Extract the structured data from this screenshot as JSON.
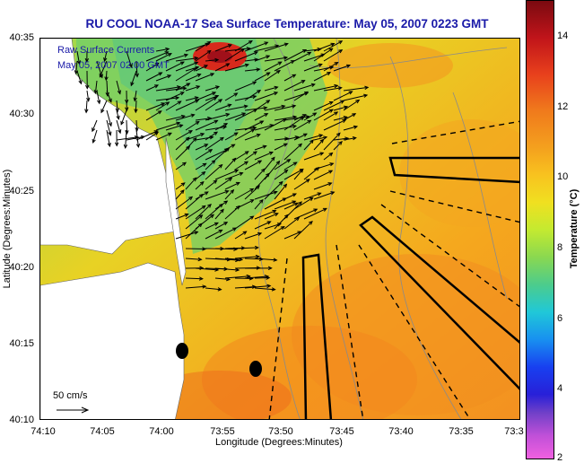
{
  "title": "RU COOL  NOAA-17  Sea Surface Temperature:  May 05, 2007 0223 GMT",
  "map_legend": {
    "line1": "Raw Surface Currents",
    "line2": "May 05, 2007 02:00 GMT"
  },
  "scale_arrow_label": "50 cm/s",
  "y_axis": {
    "label": "Latitude (Degrees:Minutes)",
    "ticks": [
      "40:35",
      "40:30",
      "40:25",
      "40:20",
      "40:15",
      "40:10"
    ]
  },
  "x_axis": {
    "label": "Longitude (Degrees:Minutes)",
    "ticks": [
      "74:10",
      "74:05",
      "74:00",
      "73:55",
      "73:50",
      "73:45",
      "73:40",
      "73:35",
      "73:3"
    ]
  },
  "colorbar": {
    "label": "Temperature (°C)",
    "ticks": [
      "14",
      "12",
      "10",
      "8",
      "6",
      "4",
      "2"
    ],
    "range": [
      2,
      15
    ]
  },
  "colors": {
    "land": "#ffffff",
    "sst_warm": "#f39a1f",
    "sst_mid": "#f5c81e",
    "sst_cool": "#8fd35a",
    "title": "#1a1aa8",
    "vectors": "#000000"
  },
  "markers": {
    "stations": 2,
    "shipping_lanes": 3
  }
}
